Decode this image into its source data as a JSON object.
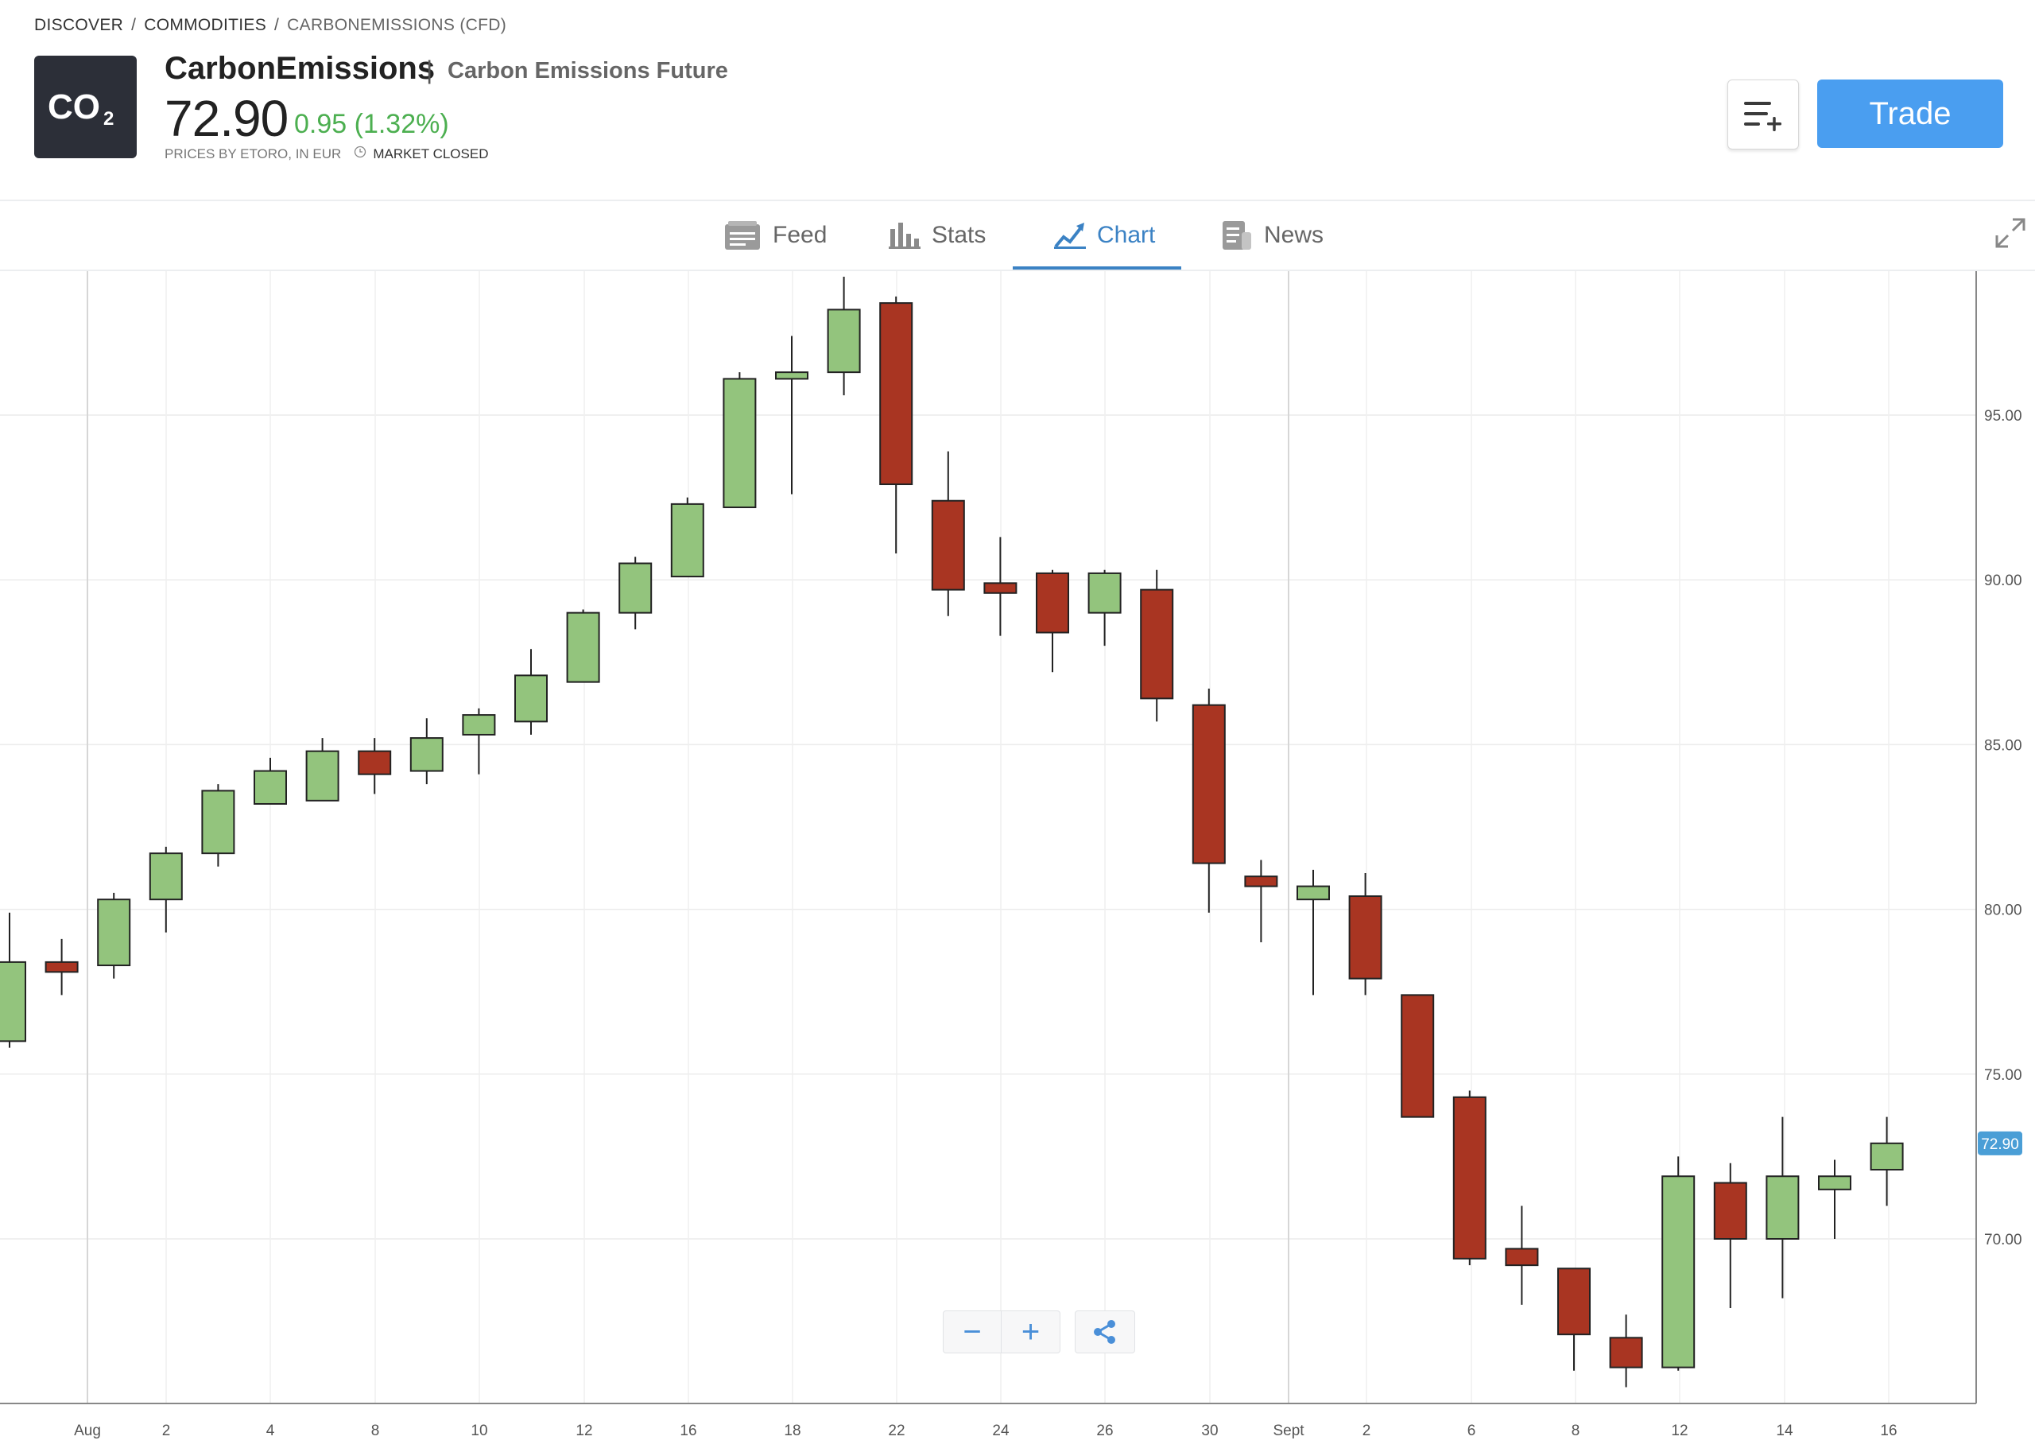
{
  "breadcrumb": {
    "items": [
      "DISCOVER",
      "COMMODITIES",
      "CARBONEMISSIONS (CFD)"
    ]
  },
  "instrument": {
    "logo_text": "CO2",
    "name": "CarbonEmissions",
    "full_name": "Carbon Emissions Future",
    "price": "72.90",
    "change": "0.95 (1.32%)",
    "change_color": "#4caf50",
    "source": "PRICES BY ETORO, IN EUR",
    "market_status": "MARKET CLOSED"
  },
  "actions": {
    "watchlist_icon": "add-to-watchlist-icon",
    "trade_label": "Trade",
    "trade_color": "#4a9ef0"
  },
  "tabs": [
    {
      "label": "Feed",
      "icon": "feed-icon"
    },
    {
      "label": "Stats",
      "icon": "stats-icon"
    },
    {
      "label": "Chart",
      "icon": "chart-icon",
      "active": true
    },
    {
      "label": "News",
      "icon": "news-icon"
    }
  ],
  "chart_controls": {
    "zoom_out": "−",
    "zoom_in": "+",
    "share_icon": "share-icon"
  },
  "chart_data": {
    "type": "candlestick",
    "up_color": "#93c47d",
    "down_color": "#a93522",
    "last_price_label": "72.90",
    "last_price_color": "#4a9ed6",
    "y_ticks": [
      "95.00",
      "90.00",
      "85.00",
      "80.00",
      "75.00",
      "70.00"
    ],
    "x_ticks": [
      "Aug",
      "2",
      "4",
      "8",
      "10",
      "12",
      "16",
      "18",
      "22",
      "24",
      "26",
      "30",
      "Sept",
      "2",
      "6",
      "8",
      "12",
      "14",
      "16"
    ],
    "ylim": [
      65.0,
      99.2
    ],
    "candles": [
      {
        "o": 76.0,
        "h": 79.9,
        "l": 75.8,
        "c": 78.4
      },
      {
        "o": 78.4,
        "h": 79.1,
        "l": 77.4,
        "c": 78.1
      },
      {
        "o": 78.3,
        "h": 80.5,
        "l": 77.9,
        "c": 80.3
      },
      {
        "o": 80.3,
        "h": 81.9,
        "l": 79.3,
        "c": 81.7
      },
      {
        "o": 81.7,
        "h": 83.8,
        "l": 81.3,
        "c": 83.6
      },
      {
        "o": 83.2,
        "h": 84.6,
        "l": 83.2,
        "c": 84.2
      },
      {
        "o": 83.3,
        "h": 85.2,
        "l": 83.3,
        "c": 84.8
      },
      {
        "o": 84.8,
        "h": 85.2,
        "l": 83.5,
        "c": 84.1
      },
      {
        "o": 84.2,
        "h": 85.8,
        "l": 83.8,
        "c": 85.2
      },
      {
        "o": 85.3,
        "h": 86.1,
        "l": 84.1,
        "c": 85.9
      },
      {
        "o": 85.7,
        "h": 87.9,
        "l": 85.3,
        "c": 87.1
      },
      {
        "o": 86.9,
        "h": 89.1,
        "l": 86.9,
        "c": 89.0
      },
      {
        "o": 89.0,
        "h": 90.7,
        "l": 88.5,
        "c": 90.5
      },
      {
        "o": 90.1,
        "h": 92.5,
        "l": 90.1,
        "c": 92.3
      },
      {
        "o": 92.2,
        "h": 96.3,
        "l": 92.2,
        "c": 96.1
      },
      {
        "o": 96.1,
        "h": 97.4,
        "l": 92.6,
        "c": 96.3
      },
      {
        "o": 96.3,
        "h": 99.2,
        "l": 95.6,
        "c": 98.2
      },
      {
        "o": 98.4,
        "h": 98.6,
        "l": 90.8,
        "c": 92.9
      },
      {
        "o": 92.4,
        "h": 93.9,
        "l": 88.9,
        "c": 89.7
      },
      {
        "o": 89.9,
        "h": 91.3,
        "l": 88.3,
        "c": 89.6
      },
      {
        "o": 90.2,
        "h": 90.3,
        "l": 87.2,
        "c": 88.4
      },
      {
        "o": 89.0,
        "h": 90.3,
        "l": 88.0,
        "c": 90.2
      },
      {
        "o": 89.7,
        "h": 90.3,
        "l": 85.7,
        "c": 86.4
      },
      {
        "o": 86.2,
        "h": 86.7,
        "l": 79.9,
        "c": 81.4
      },
      {
        "o": 81.0,
        "h": 81.5,
        "l": 79.0,
        "c": 80.7
      },
      {
        "o": 80.3,
        "h": 81.2,
        "l": 77.4,
        "c": 80.7
      },
      {
        "o": 80.4,
        "h": 81.1,
        "l": 77.4,
        "c": 77.9
      },
      {
        "o": 77.4,
        "h": 77.4,
        "l": 73.7,
        "c": 73.7
      },
      {
        "o": 74.3,
        "h": 74.5,
        "l": 69.2,
        "c": 69.4
      },
      {
        "o": 69.7,
        "h": 71.0,
        "l": 68.0,
        "c": 69.2
      },
      {
        "o": 69.1,
        "h": 69.1,
        "l": 66.0,
        "c": 67.1
      },
      {
        "o": 67.0,
        "h": 67.7,
        "l": 65.5,
        "c": 66.1
      },
      {
        "o": 66.1,
        "h": 72.5,
        "l": 66.0,
        "c": 71.9
      },
      {
        "o": 71.7,
        "h": 72.3,
        "l": 67.9,
        "c": 70.0
      },
      {
        "o": 70.0,
        "h": 73.7,
        "l": 68.2,
        "c": 71.9
      },
      {
        "o": 71.5,
        "h": 72.4,
        "l": 70.0,
        "c": 71.9
      },
      {
        "o": 72.1,
        "h": 73.7,
        "l": 71.0,
        "c": 72.9
      }
    ]
  }
}
